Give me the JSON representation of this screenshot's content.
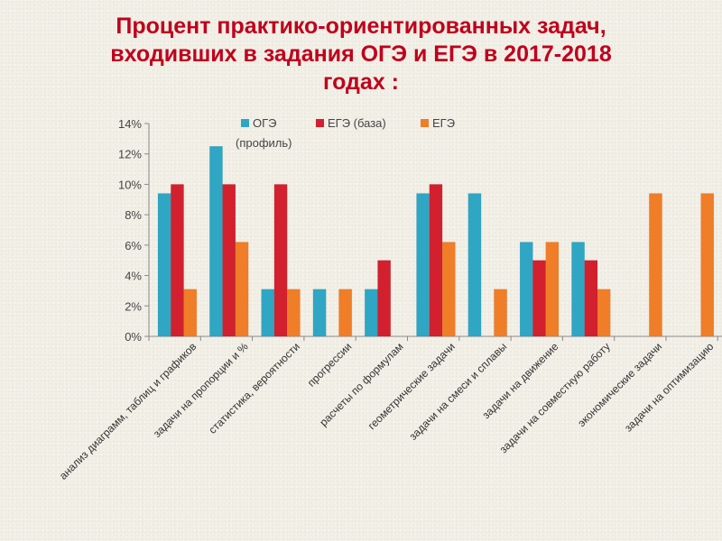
{
  "slide": {
    "title_lines": [
      "Процент практико-ориентированных задач,",
      "входивших в задания ОГЭ и ЕГЭ в 2017-2018",
      "годах :"
    ]
  },
  "chart_data": {
    "type": "bar",
    "title": "",
    "xlabel": "",
    "ylabel": "",
    "ylim": [
      0,
      14
    ],
    "yticks": [
      "0%",
      "2%",
      "4%",
      "6%",
      "8%",
      "10%",
      "12%",
      "14%"
    ],
    "grid": false,
    "legend_position": "top",
    "categories": [
      "анализ диаграмм, таблиц и графиков",
      "задачи на пропорции и %",
      "статистика, вероятности",
      "прогрессии",
      "расчеты по формулам",
      "геометрические задачи",
      "задачи на смеси и сплавы",
      "задачи на движение",
      "задачи на совместную работу",
      "экономические задачи",
      "задачи на оптимизацию"
    ],
    "series": [
      {
        "name": "ОГЭ",
        "color": "#2ea6c4",
        "values": [
          9.4,
          12.5,
          3.1,
          3.1,
          3.1,
          9.4,
          9.4,
          6.2,
          6.2,
          0,
          0
        ]
      },
      {
        "name": "ЕГЭ (база)",
        "color": "#d2202e",
        "values": [
          10,
          10,
          10,
          0,
          5,
          10,
          0,
          5,
          5,
          0,
          0
        ]
      },
      {
        "name": "ЕГЭ (профиль)",
        "color": "#f07d27",
        "values": [
          3.1,
          6.2,
          3.1,
          3.1,
          0,
          6.2,
          3.1,
          6.2,
          3.1,
          9.4,
          9.4
        ]
      }
    ]
  }
}
